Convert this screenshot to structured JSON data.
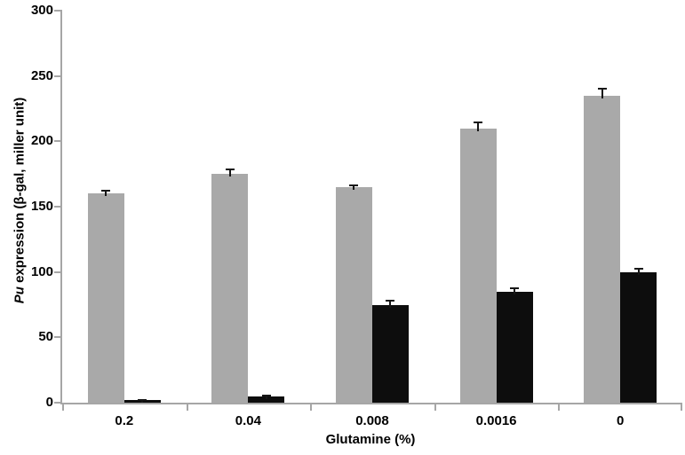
{
  "chart_data": {
    "type": "bar",
    "title": "",
    "categories": [
      "0.2",
      "0.04",
      "0.008",
      "0.0016",
      "0"
    ],
    "series": [
      {
        "name": "gray-series",
        "color": "#a9a9a9",
        "values": [
          160,
          175,
          165,
          210,
          235
        ],
        "errors": [
          3,
          4,
          2,
          5,
          6
        ]
      },
      {
        "name": "black-series",
        "color": "#0d0d0d",
        "values": [
          2,
          5,
          75,
          85,
          100
        ],
        "errors": [
          1,
          1,
          4,
          3,
          3
        ]
      }
    ],
    "xlabel": "Glutamine (%)",
    "ylabel_italic": "Pu",
    "ylabel_rest": " expression (β-gal, miller unit)",
    "ylim": [
      0,
      300
    ],
    "yticks": [
      0,
      50,
      100,
      150,
      200,
      250,
      300
    ],
    "grid": false,
    "legend_position": "none",
    "error_bar_color": "#161616",
    "axis_color": "#a6a6a6",
    "background_color": "#ffffff"
  }
}
